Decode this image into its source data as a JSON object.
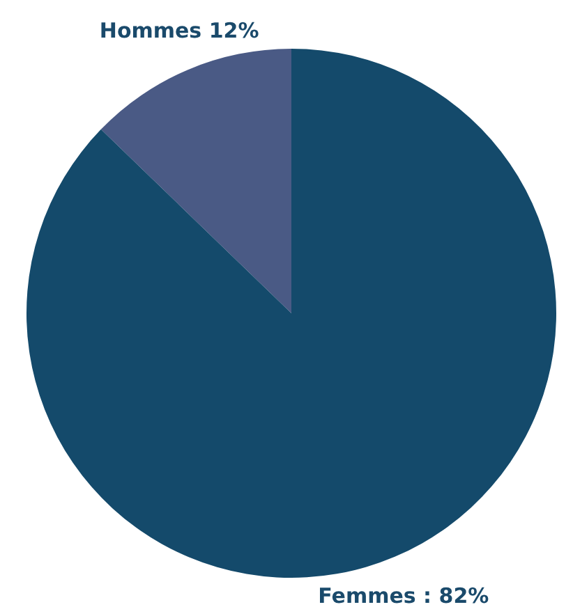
{
  "chart_data": {
    "type": "pie",
    "categories": [
      "Hommes",
      "Femmes"
    ],
    "values": [
      12,
      82
    ],
    "colors": [
      "#4a5a85",
      "#144a6b"
    ],
    "value_labels": [
      "12%",
      ": 82%"
    ],
    "legend": false
  }
}
